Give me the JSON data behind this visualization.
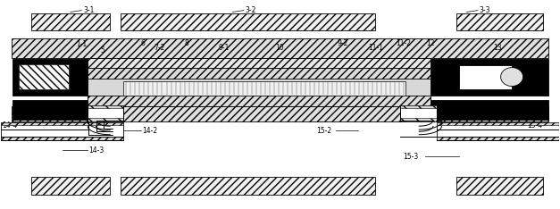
{
  "bg_color": "#ffffff",
  "fig_width": 6.27,
  "fig_height": 2.34,
  "dpi": 100,
  "colors": {
    "black": "#000000",
    "white": "#ffffff",
    "hatch_bg": "#f5f5f5",
    "gray_light": "#e8e8e8",
    "gray_mid": "#cccccc"
  },
  "top_panels": {
    "p1": [
      0.055,
      0.855,
      0.14,
      0.085
    ],
    "p2": [
      0.215,
      0.855,
      0.455,
      0.085
    ],
    "p3": [
      0.815,
      0.855,
      0.155,
      0.085
    ]
  },
  "bot_panels": {
    "p1": [
      0.055,
      0.065,
      0.14,
      0.085
    ],
    "p2": [
      0.215,
      0.065,
      0.455,
      0.085
    ],
    "p3": [
      0.815,
      0.065,
      0.155,
      0.085
    ]
  },
  "labels_top": {
    "3-1": [
      0.13,
      0.965,
      0.125,
      0.915
    ],
    "3-2": [
      0.43,
      0.965,
      0.42,
      0.915
    ],
    "3-3": [
      0.855,
      0.965,
      0.845,
      0.915
    ]
  },
  "fs": 5.5
}
